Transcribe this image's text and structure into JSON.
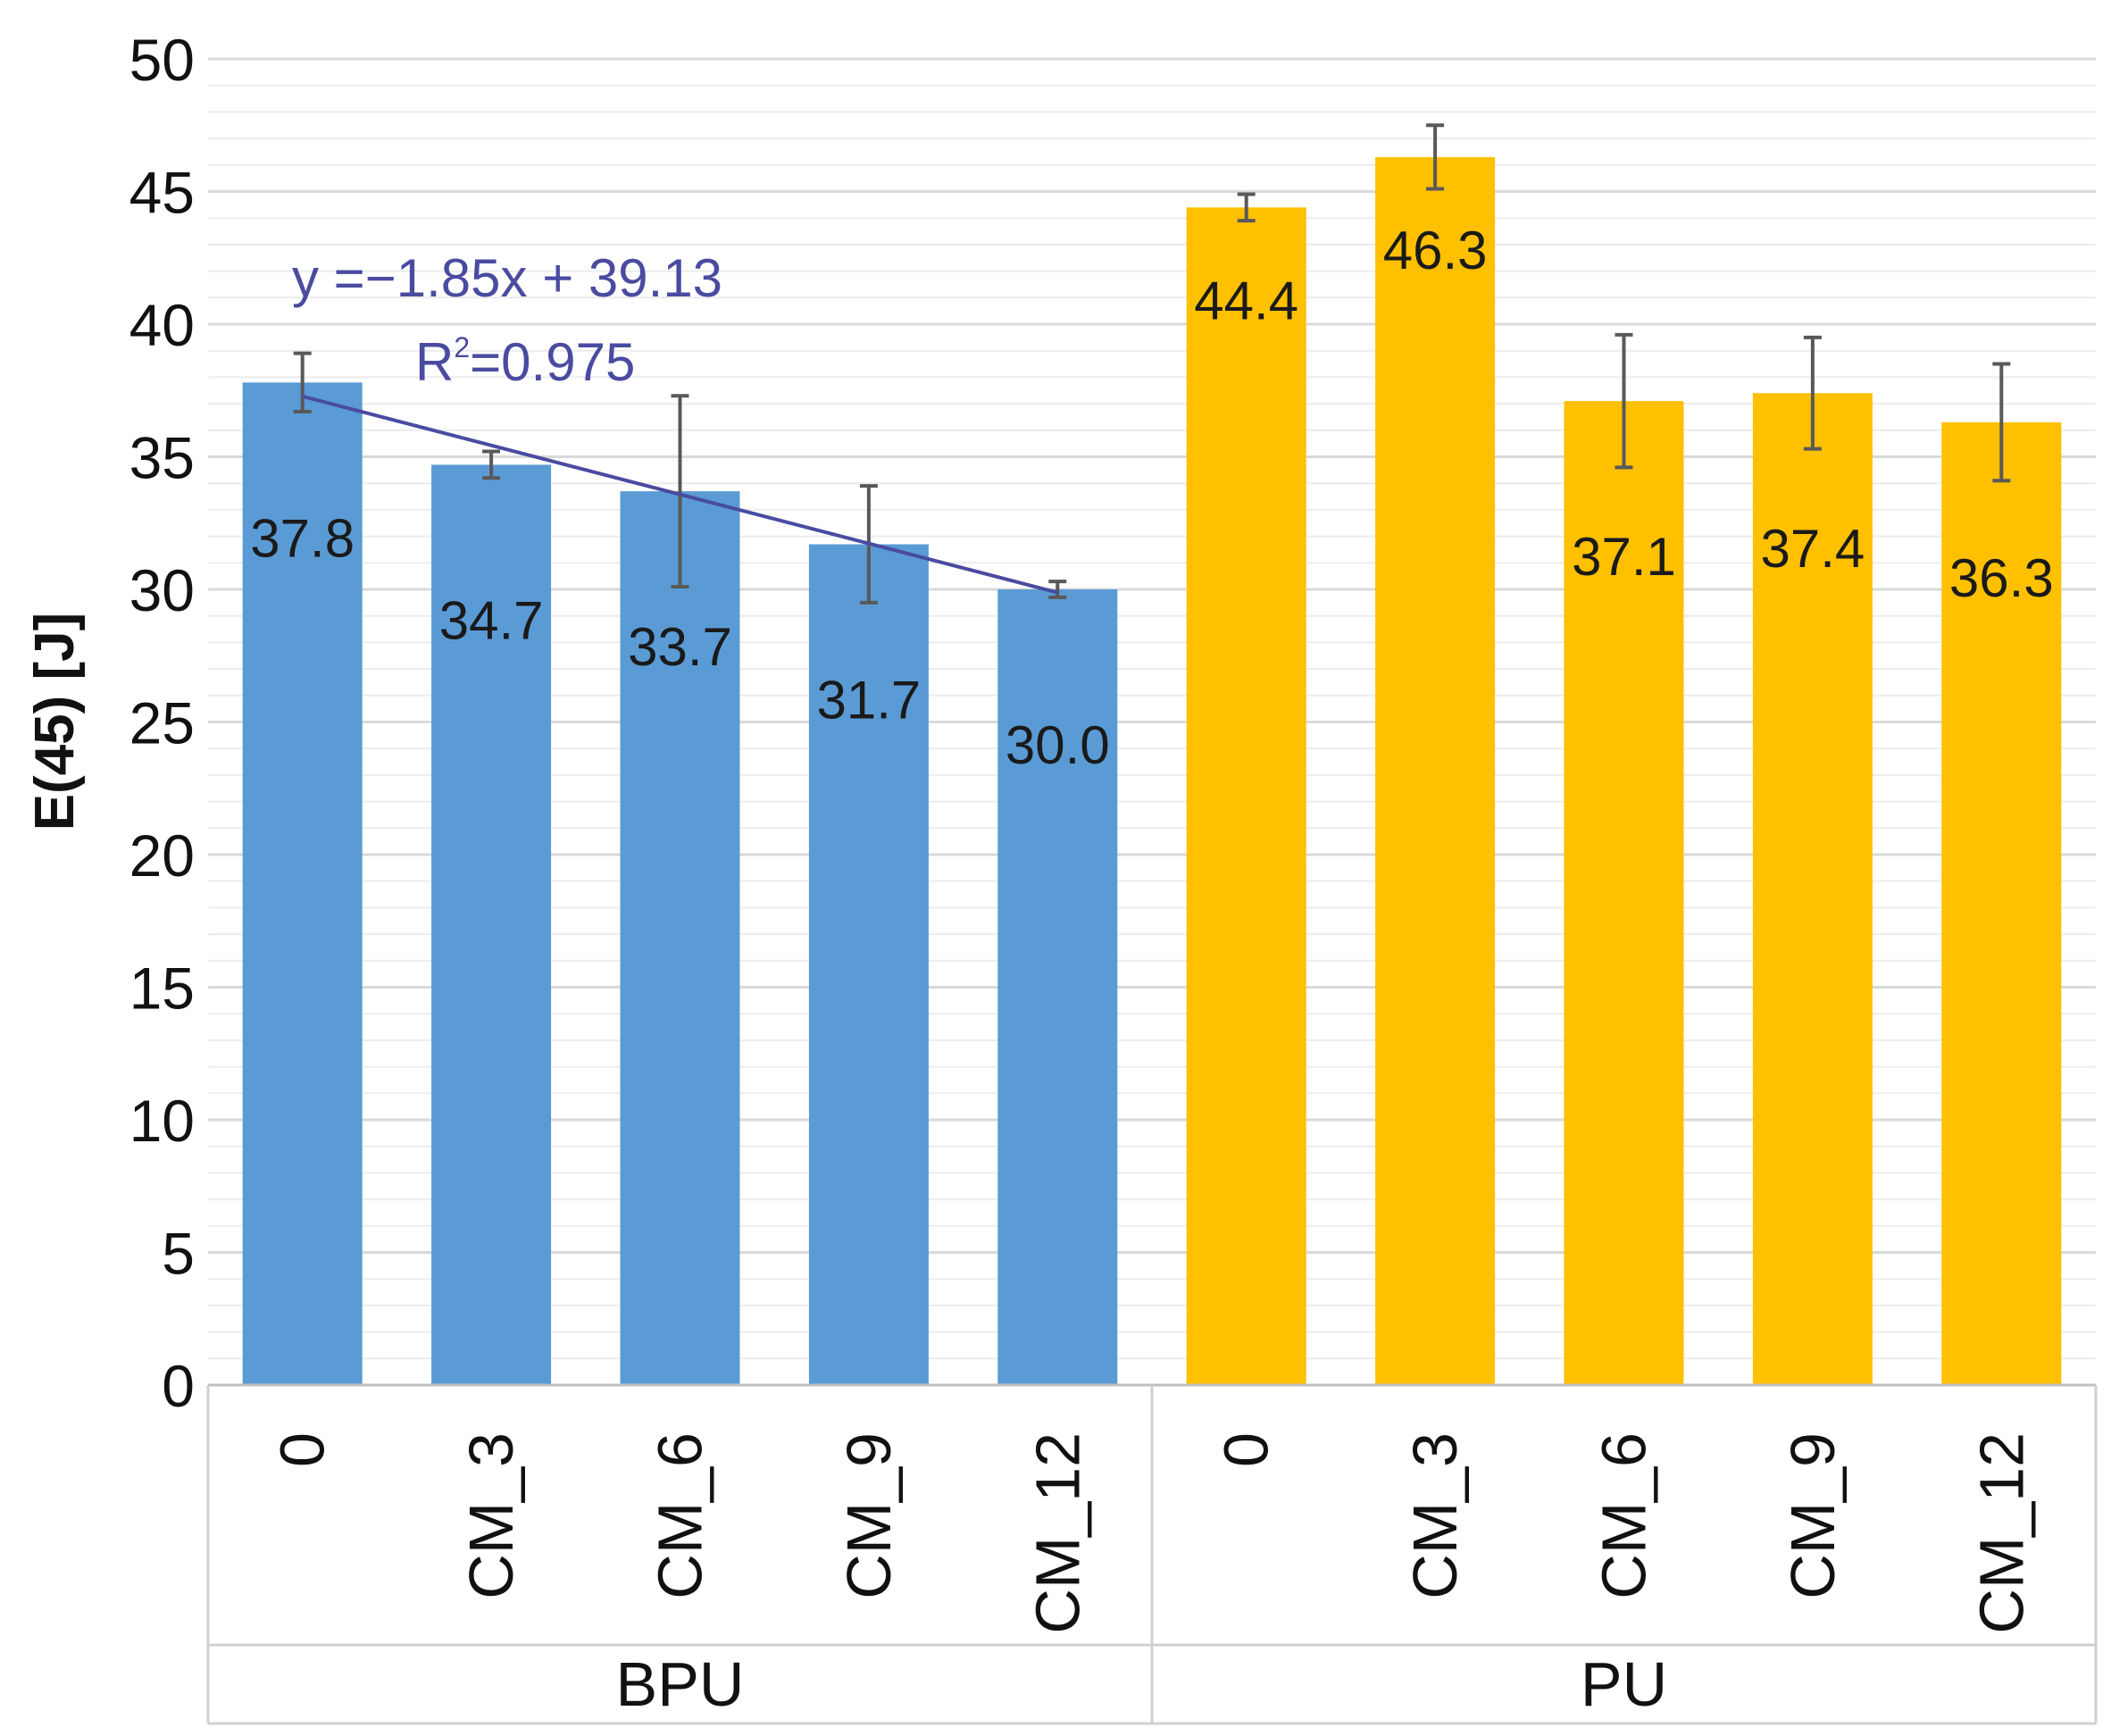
{
  "chart_data": {
    "type": "bar",
    "title": "",
    "ylabel": "E(45) [J]",
    "xlabel": "",
    "ylim": [
      0,
      50
    ],
    "y_ticks": [
      "0",
      "5",
      "10",
      "15",
      "20",
      "25",
      "30",
      "35",
      "40",
      "45",
      "50"
    ],
    "grid": true,
    "groups": [
      {
        "name": "BPU",
        "color": "#5b9bd5",
        "categories": [
          "0",
          "CM_3",
          "CM_6",
          "CM_9",
          "CM_12"
        ],
        "values": [
          37.8,
          34.7,
          33.7,
          31.7,
          30.0
        ],
        "labels": [
          "37.8",
          "34.7",
          "33.7",
          "31.7",
          "30.0"
        ],
        "error": [
          1.1,
          0.5,
          3.6,
          2.2,
          0.3
        ]
      },
      {
        "name": "PU",
        "color": "#ffc000",
        "categories": [
          "0",
          "CM_3",
          "CM_6",
          "CM_9",
          "CM_12"
        ],
        "values": [
          44.4,
          46.3,
          37.1,
          37.4,
          36.3
        ],
        "labels": [
          "44.4",
          "46.3",
          "37.1",
          "37.4",
          "36.3"
        ],
        "error": [
          0.5,
          1.2,
          2.5,
          2.1,
          2.2
        ]
      }
    ],
    "trendline": {
      "group": "BPU",
      "slope": -1.85,
      "intercept": 39.13,
      "equation": "y =−1.85x + 39.13",
      "r2_prefix": "R",
      "r2_sup": "2",
      "r2_value": "=0.975",
      "color": "#4a4ba0"
    }
  }
}
